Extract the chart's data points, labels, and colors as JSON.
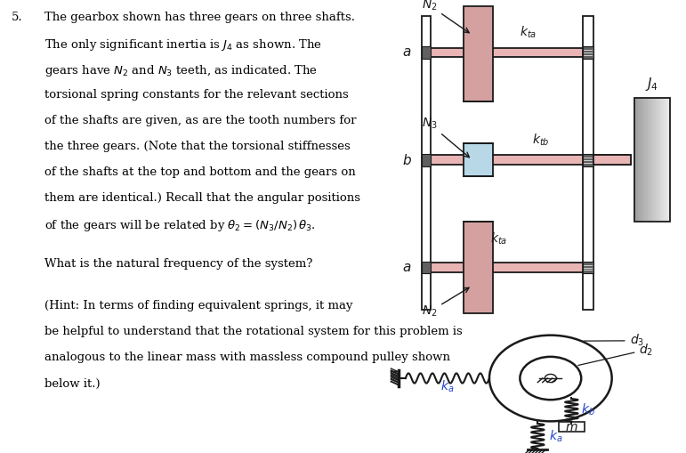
{
  "bg_color": "#ffffff",
  "text_color": "#000000",
  "pink_shaft": "#e8b4b4",
  "pink_gear_top": "#d4a0a0",
  "pink_gear_bot": "#d4a0a0",
  "blue_gear": "#b8d8e8",
  "gray_light": "#e8e8e8",
  "gray_dark": "#b0b0b0",
  "dark_line": "#1a1a1a",
  "blue_label": "#2244cc",
  "bearing_fill": "#606060",
  "problem_number": "5.",
  "main_text_lines": [
    "The gearbox shown has three gears on three shafts.",
    "The only significant inertia is $J_4$ as shown. The",
    "gears have $N_2$ and $N_3$ teeth, as indicated. The",
    "torsional spring constants for the relevant sections",
    "of the shafts are given, as are the tooth numbers for",
    "the three gears. (Note that the torsional stiffnesses",
    "of the shafts at the top and bottom and the gears on",
    "them are identical.) Recall that the angular positions",
    "of the gears will be related by $\\theta_2 = (N_3/N_2)\\,\\theta_3$."
  ],
  "question_text": "What is the natural frequency of the system?",
  "hint_lines": [
    "(Hint: In terms of finding equivalent springs, it may",
    "be helpful to understand that the rotational system for this problem is",
    "analogous to the linear mass with massless compound pulley shown",
    "below it.)"
  ]
}
